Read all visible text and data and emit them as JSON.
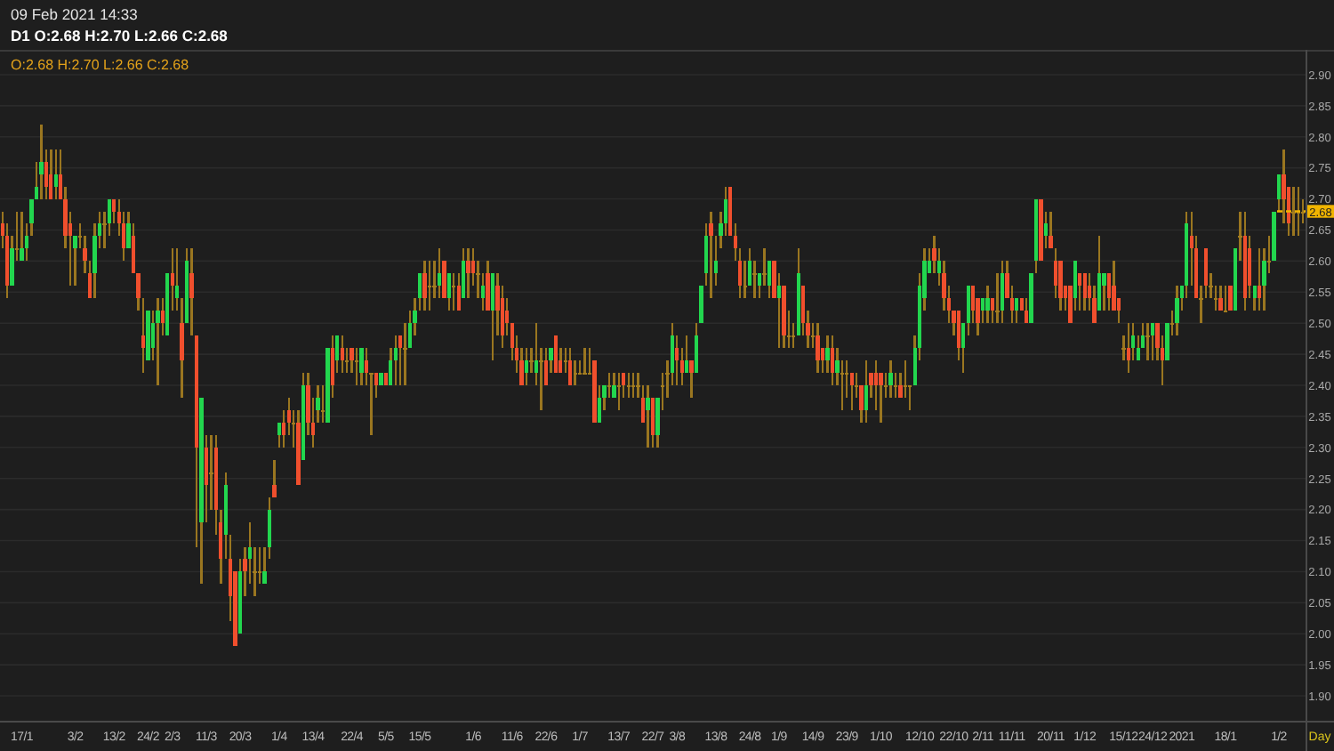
{
  "chart_data": {
    "type": "candlestick",
    "title": "09 Feb 2021 14:33",
    "subtitle": "D1 O:2.68 H:2.70 L:2.66 C:2.68",
    "annotations": [
      "O:2.68 H:2.70 L:2.66 C:2.68",
      {
        "text": "2.68",
        "y": 2.68
      }
    ],
    "xlabel": "Day",
    "categories": [
      null,
      null,
      null,
      null,
      "17/1",
      null,
      null,
      null,
      null,
      null,
      null,
      null,
      null,
      null,
      null,
      "3/2",
      null,
      null,
      null,
      null,
      null,
      null,
      null,
      "13/2",
      null,
      null,
      null,
      null,
      null,
      null,
      "24/2",
      null,
      null,
      null,
      null,
      "2/3",
      null,
      null,
      null,
      null,
      null,
      null,
      "11/3",
      null,
      null,
      null,
      null,
      null,
      null,
      "20/3",
      null,
      null,
      null,
      null,
      null,
      null,
      null,
      "1/4",
      null,
      null,
      null,
      null,
      null,
      null,
      "13/4",
      null,
      null,
      null,
      null,
      null,
      null,
      null,
      "22/4",
      null,
      null,
      null,
      null,
      null,
      null,
      "5/5",
      null,
      null,
      null,
      null,
      null,
      null,
      "15/5",
      null,
      null,
      null,
      null,
      null,
      null,
      null,
      null,
      null,
      null,
      "1/6",
      null,
      null,
      null,
      null,
      null,
      null,
      null,
      "11/6",
      null,
      null,
      null,
      null,
      null,
      null,
      "22/6",
      null,
      null,
      null,
      null,
      null,
      null,
      "1/7",
      null,
      null,
      null,
      null,
      null,
      null,
      null,
      "13/7",
      null,
      null,
      null,
      null,
      null,
      null,
      "22/7",
      null,
      null,
      null,
      null,
      "3/8",
      null,
      null,
      null,
      null,
      null,
      null,
      null,
      "13/8",
      null,
      null,
      null,
      null,
      null,
      null,
      "24/8",
      null,
      null,
      null,
      null,
      null,
      "1/9",
      null,
      null,
      null,
      null,
      null,
      null,
      "14/9",
      null,
      null,
      null,
      null,
      null,
      null,
      "23/9",
      null,
      null,
      null,
      null,
      null,
      null,
      "1/10",
      null,
      null,
      null,
      null,
      null,
      null,
      null,
      "12/10",
      null,
      null,
      null,
      null,
      null,
      null,
      "22/10",
      null,
      null,
      null,
      null,
      null,
      "2/11",
      null,
      null,
      null,
      null,
      null,
      "11/11",
      null,
      null,
      null,
      null,
      null,
      null,
      null,
      "20/11",
      null,
      null,
      null,
      null,
      null,
      null,
      "1/12",
      null,
      null,
      null,
      null,
      null,
      null,
      null,
      "15/12",
      null,
      null,
      null,
      null,
      null,
      "24/12",
      null,
      null,
      null,
      null,
      null,
      "2021",
      null,
      null,
      null,
      null,
      null,
      null,
      null,
      null,
      "18/1",
      null,
      null,
      null,
      null,
      null,
      null,
      null,
      null,
      null,
      null,
      "1/2",
      null,
      null,
      null,
      null,
      null
    ],
    "ohlc": [
      [
        2.66,
        2.68,
        2.62,
        2.64
      ],
      [
        2.64,
        2.66,
        2.54,
        2.56
      ],
      [
        2.56,
        2.64,
        2.56,
        2.62
      ],
      [
        2.62,
        2.68,
        2.6,
        2.62
      ],
      [
        2.6,
        2.68,
        2.6,
        2.62
      ],
      [
        2.62,
        2.66,
        2.6,
        2.64
      ],
      [
        2.66,
        2.7,
        2.64,
        2.7
      ],
      [
        2.7,
        2.76,
        2.7,
        2.72
      ],
      [
        2.74,
        2.82,
        2.7,
        2.76
      ],
      [
        2.76,
        2.78,
        2.7,
        2.72
      ],
      [
        2.74,
        2.78,
        2.7,
        2.7
      ],
      [
        2.72,
        2.78,
        2.7,
        2.74
      ],
      [
        2.74,
        2.78,
        2.7,
        2.7
      ],
      [
        2.7,
        2.72,
        2.62,
        2.64
      ],
      [
        2.66,
        2.68,
        2.56,
        2.64
      ],
      [
        2.62,
        2.64,
        2.56,
        2.64
      ],
      [
        2.64,
        2.66,
        2.62,
        2.64
      ],
      [
        2.62,
        2.64,
        2.58,
        2.6
      ],
      [
        2.58,
        2.6,
        2.54,
        2.54
      ],
      [
        2.58,
        2.66,
        2.54,
        2.64
      ],
      [
        2.64,
        2.68,
        2.62,
        2.66
      ],
      [
        2.66,
        2.68,
        2.62,
        2.66
      ],
      [
        2.66,
        2.7,
        2.64,
        2.7
      ],
      [
        2.7,
        2.7,
        2.66,
        2.68
      ],
      [
        2.68,
        2.7,
        2.64,
        2.66
      ],
      [
        2.66,
        2.68,
        2.6,
        2.62
      ],
      [
        2.62,
        2.68,
        2.62,
        2.66
      ],
      [
        2.64,
        2.66,
        2.58,
        2.58
      ],
      [
        2.58,
        2.58,
        2.52,
        2.54
      ],
      [
        2.48,
        2.54,
        2.42,
        2.46
      ],
      [
        2.44,
        2.52,
        2.44,
        2.52
      ],
      [
        2.46,
        2.52,
        2.44,
        2.5
      ],
      [
        2.5,
        2.54,
        2.4,
        2.52
      ],
      [
        2.52,
        2.54,
        2.48,
        2.5
      ],
      [
        2.48,
        2.58,
        2.48,
        2.58
      ],
      [
        2.58,
        2.62,
        2.52,
        2.56
      ],
      [
        2.54,
        2.62,
        2.52,
        2.56
      ],
      [
        2.5,
        2.54,
        2.38,
        2.44
      ],
      [
        2.5,
        2.62,
        2.5,
        2.6
      ],
      [
        2.58,
        2.62,
        2.48,
        2.54
      ],
      [
        2.48,
        2.48,
        2.14,
        2.3
      ],
      [
        2.18,
        2.38,
        2.08,
        2.38
      ],
      [
        2.3,
        2.32,
        2.18,
        2.24
      ],
      [
        2.26,
        2.32,
        2.2,
        2.26
      ],
      [
        2.3,
        2.32,
        2.16,
        2.2
      ],
      [
        2.18,
        2.2,
        2.08,
        2.12
      ],
      [
        2.16,
        2.26,
        2.12,
        2.24
      ],
      [
        2.12,
        2.16,
        2.02,
        2.06
      ],
      [
        2.1,
        2.1,
        1.98,
        1.98
      ],
      [
        2,
        2.12,
        2,
        2.1
      ],
      [
        2.12,
        2.14,
        2.06,
        2.1
      ],
      [
        2.12,
        2.18,
        2.08,
        2.14
      ],
      [
        2.1,
        2.14,
        2.06,
        2.1
      ],
      [
        2.1,
        2.14,
        2.08,
        2.1
      ],
      [
        2.08,
        2.14,
        2.08,
        2.1
      ],
      [
        2.14,
        2.22,
        2.12,
        2.2
      ],
      [
        2.24,
        2.28,
        2.22,
        2.22
      ],
      [
        2.32,
        2.34,
        2.3,
        2.34
      ],
      [
        2.34,
        2.36,
        2.3,
        2.32
      ],
      [
        2.36,
        2.38,
        2.32,
        2.34
      ],
      [
        2.34,
        2.36,
        2.3,
        2.34
      ],
      [
        2.34,
        2.36,
        2.24,
        2.24
      ],
      [
        2.28,
        2.42,
        2.28,
        2.4
      ],
      [
        2.4,
        2.42,
        2.32,
        2.34
      ],
      [
        2.34,
        2.38,
        2.3,
        2.32
      ],
      [
        2.36,
        2.4,
        2.34,
        2.38
      ],
      [
        2.36,
        2.4,
        2.34,
        2.36
      ],
      [
        2.34,
        2.46,
        2.34,
        2.46
      ],
      [
        2.46,
        2.48,
        2.38,
        2.4
      ],
      [
        2.44,
        2.48,
        2.42,
        2.48
      ],
      [
        2.46,
        2.48,
        2.42,
        2.44
      ],
      [
        2.44,
        2.46,
        2.42,
        2.44
      ],
      [
        2.46,
        2.46,
        2.42,
        2.44
      ],
      [
        2.44,
        2.46,
        2.4,
        2.44
      ],
      [
        2.42,
        2.46,
        2.4,
        2.46
      ],
      [
        2.44,
        2.46,
        2.4,
        2.42
      ],
      [
        2.42,
        2.42,
        2.32,
        2.42
      ],
      [
        2.42,
        2.42,
        2.38,
        2.4
      ],
      [
        2.4,
        2.42,
        2.4,
        2.42
      ],
      [
        2.42,
        2.42,
        2.4,
        2.4
      ],
      [
        2.4,
        2.46,
        2.4,
        2.44
      ],
      [
        2.44,
        2.48,
        2.4,
        2.46
      ],
      [
        2.48,
        2.48,
        2.4,
        2.46
      ],
      [
        2.46,
        2.5,
        2.4,
        2.46
      ],
      [
        2.46,
        2.52,
        2.46,
        2.5
      ],
      [
        2.5,
        2.54,
        2.48,
        2.52
      ],
      [
        2.54,
        2.58,
        2.52,
        2.58
      ],
      [
        2.58,
        2.6,
        2.52,
        2.54
      ],
      [
        2.56,
        2.6,
        2.52,
        2.56
      ],
      [
        2.56,
        2.6,
        2.54,
        2.56
      ],
      [
        2.56,
        2.62,
        2.54,
        2.58
      ],
      [
        2.6,
        2.6,
        2.54,
        2.54
      ],
      [
        2.54,
        2.58,
        2.52,
        2.58
      ],
      [
        2.56,
        2.58,
        2.52,
        2.56
      ],
      [
        2.56,
        2.58,
        2.52,
        2.52
      ],
      [
        2.54,
        2.62,
        2.54,
        2.6
      ],
      [
        2.6,
        2.62,
        2.54,
        2.58
      ],
      [
        2.6,
        2.62,
        2.56,
        2.58
      ],
      [
        2.58,
        2.6,
        2.54,
        2.58
      ],
      [
        2.54,
        2.58,
        2.52,
        2.56
      ],
      [
        2.58,
        2.6,
        2.52,
        2.52
      ],
      [
        2.52,
        2.58,
        2.44,
        2.58
      ],
      [
        2.56,
        2.58,
        2.48,
        2.52
      ],
      [
        2.54,
        2.56,
        2.46,
        2.48
      ],
      [
        2.52,
        2.54,
        2.48,
        2.5
      ],
      [
        2.5,
        2.5,
        2.44,
        2.46
      ],
      [
        2.46,
        2.48,
        2.42,
        2.44
      ],
      [
        2.44,
        2.46,
        2.4,
        2.4
      ],
      [
        2.42,
        2.46,
        2.4,
        2.44
      ],
      [
        2.44,
        2.46,
        2.42,
        2.44
      ],
      [
        2.42,
        2.5,
        2.4,
        2.44
      ],
      [
        2.44,
        2.46,
        2.36,
        2.44
      ],
      [
        2.44,
        2.46,
        2.4,
        2.4
      ],
      [
        2.44,
        2.46,
        2.42,
        2.46
      ],
      [
        2.48,
        2.48,
        2.42,
        2.42
      ],
      [
        2.44,
        2.46,
        2.42,
        2.42
      ],
      [
        2.44,
        2.46,
        2.42,
        2.44
      ],
      [
        2.44,
        2.46,
        2.4,
        2.4
      ],
      [
        2.42,
        2.44,
        2.4,
        2.42
      ],
      [
        2.42,
        2.44,
        2.42,
        2.42
      ],
      [
        2.42,
        2.46,
        2.42,
        2.42
      ],
      [
        2.42,
        2.46,
        2.42,
        2.42
      ],
      [
        2.44,
        2.44,
        2.34,
        2.34
      ],
      [
        2.34,
        2.4,
        2.34,
        2.38
      ],
      [
        2.38,
        2.4,
        2.36,
        2.4
      ],
      [
        2.4,
        2.42,
        2.38,
        2.4
      ],
      [
        2.38,
        2.42,
        2.38,
        2.4
      ],
      [
        2.4,
        2.42,
        2.36,
        2.4
      ],
      [
        2.42,
        2.42,
        2.38,
        2.4
      ],
      [
        2.4,
        2.42,
        2.38,
        2.4
      ],
      [
        2.4,
        2.42,
        2.38,
        2.4
      ],
      [
        2.4,
        2.42,
        2.38,
        2.4
      ],
      [
        2.38,
        2.4,
        2.34,
        2.34
      ],
      [
        2.36,
        2.4,
        2.3,
        2.38
      ],
      [
        2.38,
        2.38,
        2.3,
        2.32
      ],
      [
        2.32,
        2.38,
        2.3,
        2.38
      ],
      [
        2.4,
        2.42,
        2.36,
        2.4
      ],
      [
        2.42,
        2.44,
        2.38,
        2.42
      ],
      [
        2.42,
        2.5,
        2.4,
        2.48
      ],
      [
        2.46,
        2.48,
        2.4,
        2.44
      ],
      [
        2.44,
        2.46,
        2.4,
        2.42
      ],
      [
        2.42,
        2.48,
        2.42,
        2.44
      ],
      [
        2.44,
        2.44,
        2.38,
        2.42
      ],
      [
        2.42,
        2.5,
        2.42,
        2.48
      ],
      [
        2.5,
        2.56,
        2.5,
        2.56
      ],
      [
        2.58,
        2.66,
        2.56,
        2.64
      ],
      [
        2.66,
        2.68,
        2.54,
        2.64
      ],
      [
        2.58,
        2.64,
        2.56,
        2.6
      ],
      [
        2.64,
        2.68,
        2.62,
        2.66
      ],
      [
        2.66,
        2.72,
        2.64,
        2.7
      ],
      [
        2.72,
        2.72,
        2.64,
        2.64
      ],
      [
        2.64,
        2.66,
        2.6,
        2.62
      ],
      [
        2.6,
        2.62,
        2.54,
        2.56
      ],
      [
        2.56,
        2.6,
        2.54,
        2.56
      ],
      [
        2.56,
        2.62,
        2.56,
        2.6
      ],
      [
        2.58,
        2.6,
        2.54,
        2.58
      ],
      [
        2.56,
        2.58,
        2.54,
        2.58
      ],
      [
        2.58,
        2.62,
        2.56,
        2.58
      ],
      [
        2.56,
        2.6,
        2.54,
        2.6
      ],
      [
        2.6,
        2.6,
        2.54,
        2.54
      ],
      [
        2.54,
        2.58,
        2.46,
        2.56
      ],
      [
        2.56,
        2.56,
        2.46,
        2.48
      ],
      [
        2.48,
        2.52,
        2.46,
        2.48
      ],
      [
        2.48,
        2.5,
        2.46,
        2.48
      ],
      [
        2.48,
        2.62,
        2.48,
        2.58
      ],
      [
        2.56,
        2.56,
        2.48,
        2.5
      ],
      [
        2.5,
        2.52,
        2.46,
        2.48
      ],
      [
        2.48,
        2.5,
        2.46,
        2.48
      ],
      [
        2.48,
        2.5,
        2.42,
        2.44
      ],
      [
        2.46,
        2.46,
        2.42,
        2.44
      ],
      [
        2.44,
        2.48,
        2.42,
        2.46
      ],
      [
        2.46,
        2.48,
        2.4,
        2.42
      ],
      [
        2.42,
        2.46,
        2.4,
        2.44
      ],
      [
        2.42,
        2.44,
        2.36,
        2.42
      ],
      [
        2.42,
        2.44,
        2.38,
        2.42
      ],
      [
        2.42,
        2.42,
        2.36,
        2.4
      ],
      [
        2.4,
        2.42,
        2.38,
        2.4
      ],
      [
        2.4,
        2.4,
        2.34,
        2.36
      ],
      [
        2.36,
        2.44,
        2.34,
        2.4
      ],
      [
        2.42,
        2.42,
        2.38,
        2.4
      ],
      [
        2.42,
        2.44,
        2.36,
        2.4
      ],
      [
        2.42,
        2.42,
        2.34,
        2.4
      ],
      [
        2.4,
        2.42,
        2.38,
        2.4
      ],
      [
        2.4,
        2.44,
        2.38,
        2.42
      ],
      [
        2.4,
        2.42,
        2.38,
        2.4
      ],
      [
        2.4,
        2.42,
        2.38,
        2.38
      ],
      [
        2.4,
        2.44,
        2.38,
        2.4
      ],
      [
        2.4,
        2.4,
        2.36,
        2.4
      ],
      [
        2.4,
        2.48,
        2.4,
        2.46
      ],
      [
        2.46,
        2.58,
        2.44,
        2.56
      ],
      [
        2.54,
        2.62,
        2.52,
        2.6
      ],
      [
        2.58,
        2.62,
        2.58,
        2.6
      ],
      [
        2.62,
        2.64,
        2.58,
        2.6
      ],
      [
        2.58,
        2.62,
        2.56,
        2.6
      ],
      [
        2.58,
        2.6,
        2.52,
        2.54
      ],
      [
        2.54,
        2.56,
        2.5,
        2.52
      ],
      [
        2.52,
        2.52,
        2.48,
        2.5
      ],
      [
        2.52,
        2.52,
        2.44,
        2.46
      ],
      [
        2.46,
        2.5,
        2.42,
        2.5
      ],
      [
        2.5,
        2.56,
        2.48,
        2.56
      ],
      [
        2.56,
        2.56,
        2.5,
        2.52
      ],
      [
        2.54,
        2.54,
        2.48,
        2.5
      ],
      [
        2.52,
        2.54,
        2.5,
        2.54
      ],
      [
        2.52,
        2.56,
        2.5,
        2.54
      ],
      [
        2.54,
        2.54,
        2.5,
        2.52
      ],
      [
        2.52,
        2.58,
        2.5,
        2.52
      ],
      [
        2.52,
        2.6,
        2.5,
        2.58
      ],
      [
        2.58,
        2.6,
        2.54,
        2.54
      ],
      [
        2.54,
        2.56,
        2.5,
        2.52
      ],
      [
        2.52,
        2.54,
        2.5,
        2.54
      ],
      [
        2.54,
        2.54,
        2.52,
        2.52
      ],
      [
        2.52,
        2.54,
        2.5,
        2.5
      ],
      [
        2.5,
        2.58,
        2.5,
        2.58
      ],
      [
        2.6,
        2.7,
        2.58,
        2.7
      ],
      [
        2.7,
        2.7,
        2.6,
        2.6
      ],
      [
        2.64,
        2.68,
        2.62,
        2.66
      ],
      [
        2.64,
        2.68,
        2.62,
        2.62
      ],
      [
        2.6,
        2.62,
        2.54,
        2.56
      ],
      [
        2.6,
        2.6,
        2.52,
        2.54
      ],
      [
        2.56,
        2.56,
        2.52,
        2.54
      ],
      [
        2.56,
        2.56,
        2.5,
        2.5
      ],
      [
        2.54,
        2.6,
        2.52,
        2.6
      ],
      [
        2.58,
        2.58,
        2.52,
        2.56
      ],
      [
        2.58,
        2.58,
        2.52,
        2.54
      ],
      [
        2.56,
        2.58,
        2.52,
        2.54
      ],
      [
        2.54,
        2.56,
        2.5,
        2.5
      ],
      [
        2.52,
        2.64,
        2.52,
        2.58
      ],
      [
        2.56,
        2.58,
        2.52,
        2.58
      ],
      [
        2.58,
        2.58,
        2.52,
        2.54
      ],
      [
        2.56,
        2.6,
        2.52,
        2.52
      ],
      [
        2.54,
        2.54,
        2.5,
        2.52
      ],
      [
        2.46,
        2.48,
        2.44,
        2.46
      ],
      [
        2.46,
        2.5,
        2.42,
        2.44
      ],
      [
        2.46,
        2.5,
        2.44,
        2.48
      ],
      [
        2.44,
        2.48,
        2.44,
        2.46
      ],
      [
        2.46,
        2.5,
        2.46,
        2.48
      ],
      [
        2.48,
        2.5,
        2.44,
        2.48
      ],
      [
        2.48,
        2.5,
        2.44,
        2.5
      ],
      [
        2.5,
        2.5,
        2.44,
        2.46
      ],
      [
        2.46,
        2.48,
        2.4,
        2.44
      ],
      [
        2.44,
        2.5,
        2.44,
        2.5
      ],
      [
        2.5,
        2.52,
        2.48,
        2.5
      ],
      [
        2.5,
        2.56,
        2.48,
        2.54
      ],
      [
        2.54,
        2.56,
        2.52,
        2.56
      ],
      [
        2.56,
        2.68,
        2.54,
        2.66
      ],
      [
        2.64,
        2.68,
        2.56,
        2.62
      ],
      [
        2.62,
        2.64,
        2.54,
        2.54
      ],
      [
        2.54,
        2.56,
        2.5,
        2.54
      ],
      [
        2.62,
        2.62,
        2.54,
        2.56
      ],
      [
        2.56,
        2.58,
        2.54,
        2.56
      ],
      [
        2.54,
        2.56,
        2.52,
        2.54
      ],
      [
        2.54,
        2.56,
        2.52,
        2.52
      ],
      [
        2.52,
        2.56,
        2.52,
        2.52
      ],
      [
        2.56,
        2.56,
        2.52,
        2.52
      ],
      [
        2.52,
        2.62,
        2.52,
        2.62
      ],
      [
        2.64,
        2.68,
        2.6,
        2.64
      ],
      [
        2.64,
        2.68,
        2.52,
        2.54
      ],
      [
        2.62,
        2.64,
        2.54,
        2.56
      ],
      [
        2.54,
        2.56,
        2.52,
        2.56
      ],
      [
        2.56,
        2.62,
        2.52,
        2.54
      ],
      [
        2.56,
        2.62,
        2.52,
        2.6
      ],
      [
        2.6,
        2.64,
        2.58,
        2.6
      ],
      [
        2.6,
        2.68,
        2.6,
        2.68
      ],
      [
        2.7,
        2.74,
        2.68,
        2.74
      ],
      [
        2.74,
        2.78,
        2.66,
        2.7
      ],
      [
        2.72,
        2.72,
        2.64,
        2.66
      ],
      [
        2.68,
        2.72,
        2.64,
        2.68
      ],
      [
        2.68,
        2.72,
        2.64,
        2.68
      ],
      [
        2.68,
        2.7,
        2.66,
        2.68
      ]
    ],
    "color": "#9a7620",
    "colors": [
      "#f04f2d",
      "#f04f2d",
      "#22d64e",
      "#a37d1f",
      "#22d64e",
      "#22d64e",
      "#22d64e",
      "#22d64e",
      "#22d64e",
      "#f04f2d",
      "#f04f2d",
      "#22d64e",
      "#f04f2d",
      "#f04f2d",
      "#f04f2d",
      "#22d64e",
      "#a37d1f",
      "#f04f2d",
      "#f04f2d",
      "#22d64e",
      "#22d64e",
      "#a37d1f",
      "#22d64e",
      "#f04f2d",
      "#f04f2d",
      "#f04f2d",
      "#22d64e",
      "#f04f2d",
      "#f04f2d",
      "#f04f2d",
      "#22d64e",
      "#22d64e",
      "#22d64e",
      "#f04f2d",
      "#22d64e",
      "#f04f2d",
      "#22d64e",
      "#f04f2d",
      "#22d64e",
      "#f04f2d",
      "#f04f2d",
      "#22d64e",
      "#f04f2d",
      "#a37d1f",
      "#f04f2d",
      "#f04f2d",
      "#22d64e",
      "#f04f2d",
      "#f04f2d",
      "#22d64e",
      "#f04f2d",
      "#22d64e",
      "#a37d1f",
      "#a37d1f",
      "#22d64e",
      "#22d64e",
      "#f04f2d",
      "#22d64e",
      "#f04f2d",
      "#f04f2d",
      "#a37d1f",
      "#f04f2d",
      "#22d64e",
      "#f04f2d",
      "#f04f2d",
      "#22d64e",
      "#a37d1f",
      "#22d64e",
      "#f04f2d",
      "#22d64e",
      "#f04f2d",
      "#a37d1f",
      "#f04f2d",
      "#a37d1f",
      "#22d64e",
      "#f04f2d",
      "#a37d1f",
      "#f04f2d",
      "#22d64e",
      "#f04f2d",
      "#22d64e",
      "#22d64e",
      "#f04f2d",
      "#a37d1f",
      "#22d64e",
      "#22d64e",
      "#22d64e",
      "#f04f2d",
      "#a37d1f",
      "#a37d1f",
      "#22d64e",
      "#f04f2d",
      "#22d64e",
      "#a37d1f",
      "#f04f2d",
      "#22d64e",
      "#f04f2d",
      "#f04f2d",
      "#a37d1f",
      "#22d64e",
      "#f04f2d",
      "#22d64e",
      "#f04f2d",
      "#f04f2d",
      "#f04f2d",
      "#f04f2d",
      "#f04f2d",
      "#f04f2d",
      "#22d64e",
      "#a37d1f",
      "#22d64e",
      "#a37d1f",
      "#f04f2d",
      "#22d64e",
      "#f04f2d",
      "#f04f2d",
      "#a37d1f",
      "#f04f2d",
      "#a37d1f",
      "#a37d1f",
      "#a37d1f",
      "#a37d1f",
      "#f04f2d",
      "#22d64e",
      "#22d64e",
      "#a37d1f",
      "#22d64e",
      "#a37d1f",
      "#f04f2d",
      "#a37d1f",
      "#a37d1f",
      "#a37d1f",
      "#f04f2d",
      "#22d64e",
      "#f04f2d",
      "#22d64e",
      "#a37d1f",
      "#a37d1f",
      "#22d64e",
      "#f04f2d",
      "#f04f2d",
      "#22d64e",
      "#f04f2d",
      "#22d64e",
      "#22d64e",
      "#22d64e",
      "#f04f2d",
      "#22d64e",
      "#22d64e",
      "#22d64e",
      "#f04f2d",
      "#f04f2d",
      "#f04f2d",
      "#a37d1f",
      "#22d64e",
      "#a37d1f",
      "#22d64e",
      "#a37d1f",
      "#22d64e",
      "#f04f2d",
      "#22d64e",
      "#f04f2d",
      "#a37d1f",
      "#a37d1f",
      "#22d64e",
      "#f04f2d",
      "#f04f2d",
      "#a37d1f",
      "#f04f2d",
      "#f04f2d",
      "#22d64e",
      "#f04f2d",
      "#22d64e",
      "#a37d1f",
      "#a37d1f",
      "#f04f2d",
      "#a37d1f",
      "#f04f2d",
      "#22d64e",
      "#f04f2d",
      "#f04f2d",
      "#f04f2d",
      "#a37d1f",
      "#22d64e",
      "#a37d1f",
      "#f04f2d",
      "#a37d1f",
      "#a37d1f",
      "#22d64e",
      "#22d64e",
      "#22d64e",
      "#22d64e",
      "#f04f2d",
      "#22d64e",
      "#f04f2d",
      "#f04f2d",
      "#f04f2d",
      "#f04f2d",
      "#22d64e",
      "#22d64e",
      "#f04f2d",
      "#f04f2d",
      "#22d64e",
      "#22d64e",
      "#f04f2d",
      "#a37d1f",
      "#22d64e",
      "#f04f2d",
      "#f04f2d",
      "#22d64e",
      "#f04f2d",
      "#f04f2d",
      "#22d64e",
      "#22d64e",
      "#f04f2d",
      "#22d64e",
      "#f04f2d",
      "#f04f2d",
      "#f04f2d",
      "#f04f2d",
      "#f04f2d",
      "#22d64e",
      "#f04f2d",
      "#f04f2d",
      "#f04f2d",
      "#f04f2d",
      "#22d64e",
      "#22d64e",
      "#f04f2d",
      "#f04f2d",
      "#f04f2d",
      "#a37d1f",
      "#f04f2d",
      "#22d64e",
      "#22d64e",
      "#22d64e",
      "#a37d1f",
      "#22d64e",
      "#f04f2d",
      "#f04f2d",
      "#22d64e",
      "#a37d1f",
      "#22d64e",
      "#22d64e",
      "#22d64e",
      "#f04f2d",
      "#f04f2d",
      "#a37d1f",
      "#f04f2d",
      "#a37d1f",
      "#a37d1f",
      "#f04f2d",
      "#a37d1f",
      "#f04f2d",
      "#22d64e",
      "#a37d1f",
      "#f04f2d",
      "#f04f2d",
      "#22d64e",
      "#f04f2d",
      "#22d64e",
      "#a37d1f",
      "#22d64e",
      "#22d64e",
      "#f04f2d",
      "#f04f2d",
      "#a37d1f",
      "#a37d1f",
      "#a37d1f"
    ],
    "ylim": [
      1.86,
      2.94
    ],
    "yticks": [
      {
        "value": 1.9,
        "label": "1.90"
      },
      1.95,
      {
        "value": 2,
        "label": "2.00"
      },
      2.05,
      {
        "value": 2.1,
        "label": "2.10"
      },
      2.15,
      {
        "value": 2.2,
        "label": "2.20"
      },
      2.25,
      {
        "value": 2.3,
        "label": "2.30"
      },
      2.35,
      {
        "value": 2.4,
        "label": "2.40"
      },
      2.45,
      {
        "value": 2.5,
        "label": "2.50"
      },
      2.55,
      {
        "value": 2.6,
        "label": "2.60"
      },
      2.65,
      {
        "value": 2.7,
        "label": "2.70"
      },
      2.75,
      {
        "value": 2.8,
        "label": "2.80"
      },
      2.85,
      {
        "value": 2.9,
        "label": "2.90"
      }
    ],
    "grid": "y"
  }
}
